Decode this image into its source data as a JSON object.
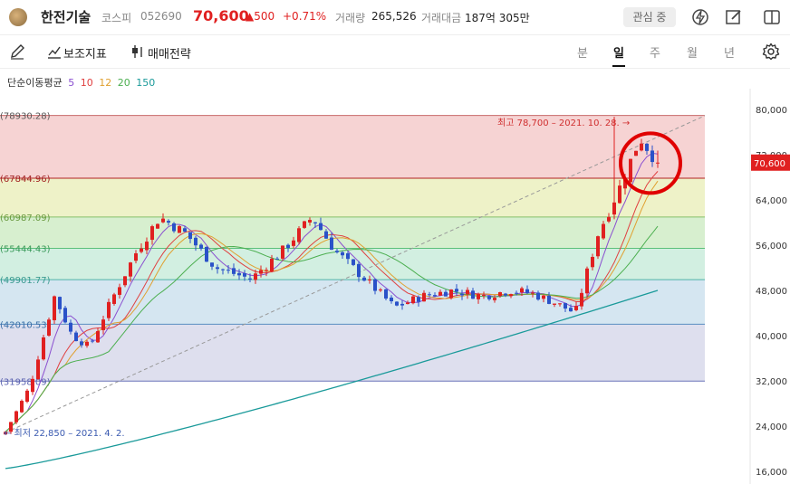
{
  "header": {
    "stock_name": "한전기술",
    "market": "코스피",
    "code": "052690",
    "price": "70,600",
    "change": "▲500",
    "change_pct": "+0.71%",
    "volume_label": "거래량",
    "volume": "265,526",
    "amount_label": "거래대금",
    "amount": "187억 305만",
    "watch_label": "관심 중",
    "up_color": "#e02020"
  },
  "toolbar": {
    "indicator_label": "보조지표",
    "strategy_label": "매매전략",
    "periods": [
      "분",
      "일",
      "주",
      "월",
      "년"
    ],
    "active_period": "일"
  },
  "ma_legend": {
    "label": "단순이동평균",
    "periods": [
      {
        "value": "5",
        "color": "#8a4fd0"
      },
      {
        "value": "10",
        "color": "#e04040"
      },
      {
        "value": "12",
        "color": "#e0a030"
      },
      {
        "value": "20",
        "color": "#4caf50"
      },
      {
        "value": "150",
        "color": "#1a9a9a"
      }
    ]
  },
  "chart_data": {
    "type": "candlestick",
    "y_axis": {
      "ticks": [
        "80,000",
        "72,000",
        "64,000",
        "56,000",
        "48,000",
        "40,000",
        "32,000",
        "24,000",
        "16,000"
      ],
      "tick_values": [
        80000,
        72000,
        64000,
        56000,
        48000,
        40000,
        32000,
        24000,
        16000
      ],
      "range": [
        15000,
        81000
      ]
    },
    "current_price_tag": "70,600",
    "current_price_value": 70600,
    "fibonacci_levels": [
      {
        "label": "(78930.28)",
        "value": 78930.28
      },
      {
        "label": "(67844.96)",
        "value": 67844.96
      },
      {
        "label": "(60987.09)",
        "value": 60987.09
      },
      {
        "label": "(55444.43)",
        "value": 55444.43
      },
      {
        "label": "(49901.77)",
        "value": 49901.77
      },
      {
        "label": "(42010.53)",
        "value": 42010.53
      },
      {
        "label": "(31958.09)",
        "value": 31958.09
      }
    ],
    "annotations": {
      "high": "최고 78,700 – 2021. 10. 28.",
      "low": "최저 22,850 – 2021. 4. 2."
    },
    "high_value": 78700,
    "low_value": 22850
  }
}
